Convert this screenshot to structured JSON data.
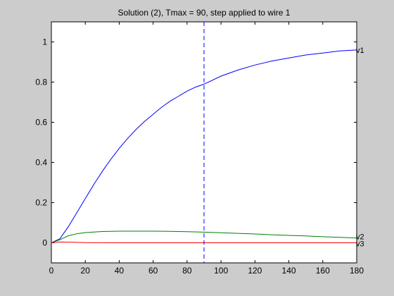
{
  "chart_data": {
    "type": "line",
    "title": "Solution (2), Tmax = 90, step applied to wire 1",
    "xlabel": "",
    "ylabel": "",
    "xlim": [
      0,
      180
    ],
    "ylim": [
      -0.1,
      1.1
    ],
    "x_ticks": [
      0,
      20,
      40,
      60,
      80,
      100,
      120,
      140,
      160,
      180
    ],
    "x_tick_labels": [
      "0",
      "20",
      "40",
      "60",
      "80",
      "100",
      "120",
      "140",
      "160",
      "180"
    ],
    "y_ticks": [
      0,
      0.2,
      0.4,
      0.6,
      0.8,
      1
    ],
    "y_tick_labels": [
      "0",
      "0.2",
      "0.4",
      "0.6",
      "0.8",
      "1"
    ],
    "grid": false,
    "vertical_line": {
      "x": 90,
      "style": "dashed",
      "color": "#0000ff"
    },
    "series": [
      {
        "name": "v1",
        "color": "#0000ff",
        "x": [
          0,
          5,
          10,
          15,
          20,
          25,
          30,
          35,
          40,
          45,
          50,
          55,
          60,
          65,
          70,
          75,
          80,
          85,
          90,
          100,
          110,
          120,
          130,
          140,
          150,
          160,
          170,
          180
        ],
        "y": [
          0,
          0.02,
          0.08,
          0.15,
          0.22,
          0.29,
          0.355,
          0.415,
          0.47,
          0.52,
          0.565,
          0.605,
          0.64,
          0.675,
          0.705,
          0.73,
          0.755,
          0.775,
          0.79,
          0.83,
          0.86,
          0.885,
          0.905,
          0.92,
          0.935,
          0.945,
          0.955,
          0.96
        ]
      },
      {
        "name": "v2",
        "color": "#008000",
        "x": [
          0,
          5,
          10,
          15,
          20,
          30,
          40,
          50,
          60,
          70,
          80,
          90,
          100,
          110,
          120,
          130,
          140,
          150,
          160,
          170,
          180
        ],
        "y": [
          0,
          0.015,
          0.035,
          0.045,
          0.051,
          0.056,
          0.058,
          0.058,
          0.058,
          0.057,
          0.055,
          0.053,
          0.05,
          0.047,
          0.044,
          0.04,
          0.037,
          0.034,
          0.03,
          0.027,
          0.024
        ]
      },
      {
        "name": "v3",
        "color": "#ff0000",
        "x": [
          0,
          5,
          10,
          15,
          20,
          25,
          30,
          40,
          60,
          80,
          100,
          120,
          140,
          160,
          180
        ],
        "y": [
          0,
          0.004,
          0.003,
          0.002,
          0.001,
          0.0005,
          0.0002,
          0,
          0,
          0,
          0,
          0,
          0,
          0,
          0
        ]
      }
    ]
  }
}
